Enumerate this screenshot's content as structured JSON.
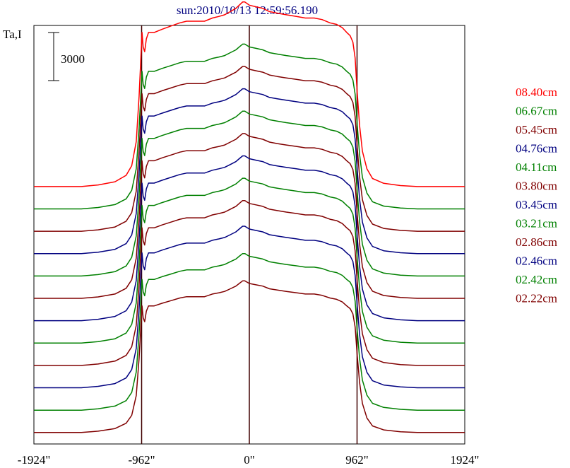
{
  "chart_data": {
    "type": "line",
    "title": "sun:2010/10/13 12:59:56.190",
    "ylabel": "Ta,I",
    "scale_bar_label": "3000",
    "scale_bar_value": 3000,
    "x_ticks": [
      {
        "value": -1924,
        "label": "-1924\""
      },
      {
        "value": -962,
        "label": "-962\""
      },
      {
        "value": 0,
        "label": "0\""
      },
      {
        "value": 962,
        "label": "962\""
      },
      {
        "value": 1924,
        "label": "1924\""
      }
    ],
    "xlim": [
      -1924,
      1924
    ],
    "vertical_lines": [
      -962,
      0,
      962
    ],
    "grid": false,
    "legend_position": "right",
    "profile": {
      "x": [
        -1924,
        -1500,
        -1350,
        -1200,
        -1100,
        -1050,
        -1010,
        -985,
        -970,
        -958,
        -948,
        -935,
        -920,
        -900,
        -850,
        -780,
        -700,
        -620,
        -560,
        -520,
        -480,
        -400,
        -330,
        -270,
        -220,
        -170,
        -120,
        -90,
        -60,
        -40,
        -20,
        0,
        60,
        120,
        180,
        250,
        330,
        420,
        500,
        580,
        650,
        720,
        780,
        830,
        870,
        900,
        925,
        945,
        962,
        985,
        1010,
        1050,
        1100,
        1200,
        1350,
        1500,
        1924
      ],
      "base_values": [
        0,
        0,
        50,
        150,
        350,
        650,
        1400,
        2800,
        3900,
        4800,
        4350,
        4200,
        4600,
        4800,
        4800,
        4900,
        5000,
        5100,
        5150,
        5150,
        5150,
        5150,
        5250,
        5300,
        5350,
        5450,
        5550,
        5650,
        5750,
        5750,
        5700,
        5650,
        5600,
        5550,
        5450,
        5400,
        5350,
        5300,
        5250,
        5250,
        5200,
        5100,
        5050,
        4950,
        4800,
        4700,
        4500,
        4000,
        3000,
        1900,
        1100,
        550,
        250,
        100,
        30,
        0,
        0
      ]
    },
    "series": [
      {
        "name": "08.40cm",
        "color": "#ff0000",
        "offset": 8580,
        "amplitude": 1.12
      },
      {
        "name": "06.67cm",
        "color": "#008000",
        "offset": 7800,
        "amplitude": 1.0
      },
      {
        "name": "05.45cm",
        "color": "#800000",
        "offset": 7020,
        "amplitude": 1.0
      },
      {
        "name": "04.76cm",
        "color": "#000080",
        "offset": 6240,
        "amplitude": 1.0
      },
      {
        "name": "04.11cm",
        "color": "#008000",
        "offset": 5460,
        "amplitude": 1.0
      },
      {
        "name": "03.80cm",
        "color": "#800000",
        "offset": 4680,
        "amplitude": 1.0
      },
      {
        "name": "03.45cm",
        "color": "#000080",
        "offset": 3900,
        "amplitude": 1.0
      },
      {
        "name": "03.21cm",
        "color": "#008000",
        "offset": 3120,
        "amplitude": 1.0
      },
      {
        "name": "02.86cm",
        "color": "#800000",
        "offset": 2340,
        "amplitude": 1.0
      },
      {
        "name": "02.46cm",
        "color": "#000080",
        "offset": 1560,
        "amplitude": 0.98
      },
      {
        "name": "02.42cm",
        "color": "#008000",
        "offset": 780,
        "amplitude": 0.95
      },
      {
        "name": "02.22cm",
        "color": "#800000",
        "offset": 0,
        "amplitude": 0.92
      }
    ],
    "ylim": [
      -400,
      14200
    ]
  }
}
